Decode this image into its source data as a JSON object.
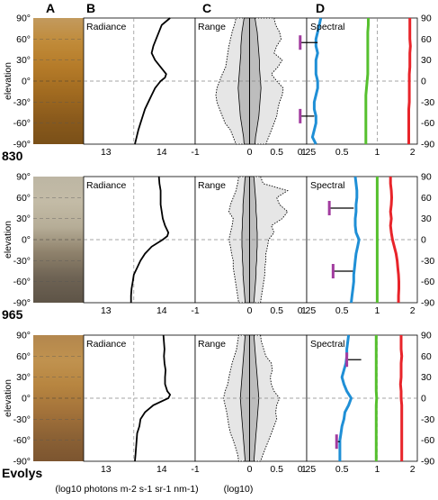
{
  "column_headers": [
    "A",
    "B",
    "C",
    "D"
  ],
  "panel_titles": {
    "radiance": "Radiance",
    "range": "Range",
    "spectral": "Spectral"
  },
  "elevation_label": "elevation",
  "elevation_ticks_left": [
    "90°",
    "60°",
    "30°",
    "0°",
    "-30°",
    "-60°",
    "-90°"
  ],
  "elevation_ticks_right": [
    "90",
    "60",
    "30",
    "0",
    "-30",
    "-60",
    "-90"
  ],
  "radiance_ticks": [
    "13",
    "14"
  ],
  "range_ticks": [
    "-1",
    "0",
    "0.5",
    "1"
  ],
  "spectral_ticks": [
    "0.25",
    "0.5",
    "1",
    "2"
  ],
  "bottom_labels": {
    "radiance": "(log10 photons m-2 s-1 sr-1 nm-1)",
    "range": "(log10)"
  },
  "colors": {
    "blue": "#1f8fd6",
    "green": "#56c02e",
    "red": "#e8242a",
    "magenta": "#a23b9f",
    "fill_outer": "#e6e6e6",
    "fill_inner": "#bdbdbd"
  },
  "chart_data": [
    {
      "type": "line",
      "row_label": "830",
      "photo_gradient": [
        "#c29a5e",
        "#c08a38",
        "#b47a28",
        "#a06a20",
        "#8a5a1c",
        "#7a5018"
      ],
      "radiance": {
        "xlim": [
          12.6,
          14.6
        ],
        "elevation": [
          90,
          80,
          70,
          60,
          50,
          40,
          30,
          20,
          10,
          5,
          0,
          -10,
          -20,
          -30,
          -40,
          -50,
          -60,
          -70,
          -80,
          -90
        ],
        "log_radiance": [
          14.15,
          14.0,
          13.95,
          13.9,
          13.85,
          13.82,
          13.88,
          13.98,
          14.08,
          14.06,
          13.98,
          13.88,
          13.82,
          13.76,
          13.7,
          13.66,
          13.62,
          13.58,
          13.55,
          13.52
        ]
      },
      "range": {
        "xlim": [
          -1,
          1.05
        ],
        "elevation": [
          90,
          80,
          70,
          60,
          50,
          40,
          30,
          20,
          10,
          0,
          -10,
          -20,
          -30,
          -40,
          -50,
          -60,
          -70,
          -80,
          -90
        ],
        "outer_min": [
          -0.25,
          -0.28,
          -0.32,
          -0.35,
          -0.38,
          -0.4,
          -0.42,
          -0.44,
          -0.5,
          -0.55,
          -0.6,
          -0.62,
          -0.6,
          -0.55,
          -0.5,
          -0.45,
          -0.35,
          -0.3,
          -0.25
        ],
        "outer_max": [
          0.45,
          0.48,
          0.55,
          0.58,
          0.5,
          0.45,
          0.6,
          0.52,
          0.4,
          0.5,
          0.62,
          0.6,
          0.55,
          0.52,
          0.5,
          0.45,
          0.4,
          0.35,
          0.3
        ],
        "inner_min": [
          -0.1,
          -0.12,
          -0.14,
          -0.15,
          -0.16,
          -0.16,
          -0.17,
          -0.18,
          -0.19,
          -0.2,
          -0.21,
          -0.2,
          -0.19,
          -0.18,
          -0.17,
          -0.15,
          -0.13,
          -0.11,
          -0.1
        ],
        "inner_max": [
          0.1,
          0.12,
          0.14,
          0.15,
          0.16,
          0.17,
          0.18,
          0.18,
          0.19,
          0.2,
          0.21,
          0.2,
          0.19,
          0.18,
          0.17,
          0.15,
          0.13,
          0.11,
          0.1
        ]
      },
      "spectral": {
        "scale": "log",
        "xlim": [
          0.25,
          2.2
        ],
        "elevation": [
          90,
          80,
          70,
          60,
          50,
          40,
          30,
          20,
          10,
          0,
          -10,
          -20,
          -30,
          -40,
          -50,
          -60,
          -70,
          -80,
          -90
        ],
        "series": [
          {
            "color": "blue",
            "values": [
              0.33,
              0.32,
              0.31,
              0.3,
              0.3,
              0.31,
              0.3,
              0.3,
              0.3,
              0.31,
              0.31,
              0.3,
              0.29,
              0.29,
              0.3,
              0.3,
              0.29,
              0.28,
              0.3
            ]
          },
          {
            "color": "green",
            "values": [
              0.84,
              0.84,
              0.83,
              0.83,
              0.83,
              0.83,
              0.83,
              0.83,
              0.83,
              0.82,
              0.81,
              0.8,
              0.8,
              0.8,
              0.8,
              0.8,
              0.8,
              0.8,
              0.8
            ]
          },
          {
            "color": "red",
            "values": [
              1.9,
              1.9,
              1.9,
              1.9,
              1.92,
              1.9,
              1.9,
              1.9,
              1.88,
              1.88,
              1.88,
              1.88,
              1.88,
              1.86,
              1.86,
              1.86,
              1.86,
              1.86,
              1.86
            ]
          }
        ],
        "markers": [
          {
            "elevation": 55,
            "from": 0.22,
            "to": 0.31
          },
          {
            "elevation": -50,
            "from": 0.22,
            "to": 0.29
          }
        ]
      }
    },
    {
      "type": "line",
      "row_label": "965",
      "photo_gradient": [
        "#bdb6a4",
        "#c3bba6",
        "#b6ad97",
        "#8f826c",
        "#6e6354",
        "#5e5447"
      ],
      "radiance": {
        "xlim": [
          12.6,
          14.6
        ],
        "elevation": [
          90,
          80,
          70,
          60,
          50,
          40,
          30,
          20,
          10,
          5,
          0,
          -10,
          -20,
          -30,
          -40,
          -50,
          -60,
          -70,
          -80,
          -90
        ],
        "log_radiance": [
          13.95,
          13.96,
          13.98,
          13.98,
          13.98,
          14.0,
          14.02,
          14.06,
          14.12,
          14.1,
          14.02,
          13.82,
          13.7,
          13.62,
          13.56,
          13.5,
          13.48,
          13.46,
          13.45,
          13.45
        ]
      },
      "range": {
        "xlim": [
          -1,
          1.05
        ],
        "elevation": [
          90,
          80,
          70,
          60,
          50,
          40,
          30,
          20,
          10,
          0,
          -10,
          -20,
          -30,
          -40,
          -50,
          -60,
          -70,
          -80,
          -90
        ],
        "outer_min": [
          -0.2,
          -0.22,
          -0.25,
          -0.3,
          -0.35,
          -0.38,
          -0.3,
          -0.32,
          -0.35,
          -0.38,
          -0.35,
          -0.33,
          -0.3,
          -0.3,
          -0.28,
          -0.26,
          -0.24,
          -0.22,
          -0.2
        ],
        "outer_max": [
          0.2,
          0.25,
          0.7,
          0.5,
          0.55,
          0.7,
          0.6,
          0.4,
          0.45,
          0.35,
          0.33,
          0.3,
          0.3,
          0.28,
          0.28,
          0.26,
          0.24,
          0.22,
          0.2
        ],
        "inner_min": [
          -0.08,
          -0.09,
          -0.1,
          -0.11,
          -0.12,
          -0.12,
          -0.13,
          -0.13,
          -0.14,
          -0.14,
          -0.14,
          -0.13,
          -0.13,
          -0.12,
          -0.12,
          -0.11,
          -0.1,
          -0.09,
          -0.08
        ],
        "inner_max": [
          0.08,
          0.09,
          0.1,
          0.11,
          0.12,
          0.12,
          0.13,
          0.13,
          0.14,
          0.14,
          0.14,
          0.13,
          0.13,
          0.12,
          0.12,
          0.11,
          0.1,
          0.09,
          0.08
        ]
      },
      "spectral": {
        "scale": "log",
        "xlim": [
          0.25,
          2.2
        ],
        "elevation": [
          90,
          80,
          70,
          60,
          50,
          40,
          30,
          20,
          10,
          0,
          -10,
          -20,
          -30,
          -40,
          -50,
          -60,
          -70,
          -80,
          -90
        ],
        "series": [
          {
            "color": "blue",
            "values": [
              0.65,
              0.66,
              0.67,
              0.67,
              0.66,
              0.66,
              0.65,
              0.65,
              0.66,
              0.7,
              0.68,
              0.66,
              0.65,
              0.64,
              0.63,
              0.63,
              0.62,
              0.61,
              0.6
            ]
          },
          {
            "color": "green",
            "values": [
              1.0,
              1.0,
              1.0,
              1.0,
              1.0,
              1.0,
              1.0,
              1.0,
              1.0,
              1.0,
              1.0,
              1.0,
              1.0,
              1.0,
              1.0,
              1.0,
              1.0,
              1.0,
              1.0
            ]
          },
          {
            "color": "red",
            "values": [
              1.3,
              1.3,
              1.32,
              1.33,
              1.32,
              1.3,
              1.32,
              1.3,
              1.32,
              1.35,
              1.4,
              1.45,
              1.48,
              1.5,
              1.52,
              1.53,
              1.53,
              1.52,
              1.52
            ]
          }
        ],
        "markers": [
          {
            "elevation": 45,
            "from": 0.39,
            "to": 0.63
          },
          {
            "elevation": -45,
            "from": 0.42,
            "to": 0.62
          }
        ]
      }
    },
    {
      "type": "line",
      "row_label": "Evolys",
      "photo_gradient": [
        "#b3874e",
        "#c0924f",
        "#b78540",
        "#a4733a",
        "#8c6235",
        "#7c5530"
      ],
      "radiance": {
        "xlim": [
          12.6,
          14.6
        ],
        "elevation": [
          90,
          80,
          70,
          60,
          50,
          40,
          30,
          20,
          10,
          5,
          0,
          -10,
          -20,
          -30,
          -40,
          -50,
          -60,
          -70,
          -80,
          -90
        ],
        "log_radiance": [
          14.03,
          14.04,
          14.05,
          14.04,
          14.05,
          14.07,
          14.06,
          14.06,
          14.1,
          14.15,
          14.12,
          13.85,
          13.7,
          13.62,
          13.6,
          13.56,
          13.55,
          13.54,
          13.53,
          13.52
        ]
      },
      "range": {
        "xlim": [
          -1,
          1.05
        ],
        "elevation": [
          90,
          80,
          70,
          60,
          50,
          40,
          30,
          20,
          10,
          0,
          -10,
          -20,
          -30,
          -40,
          -50,
          -60,
          -70,
          -80,
          -90
        ],
        "outer_min": [
          -0.2,
          -0.22,
          -0.24,
          -0.28,
          -0.32,
          -0.35,
          -0.38,
          -0.4,
          -0.45,
          -0.48,
          -0.45,
          -0.42,
          -0.4,
          -0.38,
          -0.35,
          -0.3,
          -0.26,
          -0.22,
          -0.2
        ],
        "outer_max": [
          0.2,
          0.22,
          0.26,
          0.3,
          0.4,
          0.42,
          0.38,
          0.4,
          0.45,
          0.55,
          0.5,
          0.48,
          0.5,
          0.45,
          0.4,
          0.35,
          0.3,
          0.25,
          0.2
        ],
        "inner_min": [
          -0.08,
          -0.09,
          -0.1,
          -0.11,
          -0.12,
          -0.13,
          -0.14,
          -0.15,
          -0.16,
          -0.17,
          -0.16,
          -0.15,
          -0.14,
          -0.13,
          -0.12,
          -0.11,
          -0.1,
          -0.09,
          -0.08
        ],
        "inner_max": [
          0.08,
          0.09,
          0.1,
          0.11,
          0.12,
          0.13,
          0.14,
          0.15,
          0.16,
          0.17,
          0.16,
          0.15,
          0.14,
          0.13,
          0.12,
          0.11,
          0.1,
          0.09,
          0.08
        ]
      },
      "spectral": {
        "scale": "log",
        "xlim": [
          0.25,
          2.2
        ],
        "elevation": [
          90,
          80,
          70,
          60,
          50,
          40,
          30,
          20,
          10,
          0,
          -10,
          -20,
          -30,
          -40,
          -50,
          -60,
          -70,
          -80,
          -90
        ],
        "series": [
          {
            "color": "blue",
            "values": [
              0.57,
              0.56,
              0.55,
              0.55,
              0.54,
              0.52,
              0.5,
              0.52,
              0.55,
              0.6,
              0.57,
              0.53,
              0.52,
              0.5,
              0.49,
              0.48,
              0.48,
              0.48,
              0.48
            ]
          },
          {
            "color": "green",
            "values": [
              0.98,
              0.98,
              0.98,
              0.98,
              0.98,
              0.98,
              0.98,
              0.98,
              0.98,
              0.99,
              0.98,
              0.98,
              0.98,
              0.98,
              0.98,
              0.98,
              0.98,
              0.98,
              0.98
            ]
          },
          {
            "color": "red",
            "values": [
              1.6,
              1.6,
              1.6,
              1.62,
              1.6,
              1.6,
              1.6,
              1.58,
              1.6,
              1.6,
              1.62,
              1.62,
              1.62,
              1.62,
              1.62,
              1.62,
              1.62,
              1.62,
              1.62
            ]
          }
        ],
        "markers": [
          {
            "elevation": 55,
            "from": 0.55,
            "to": 0.73
          },
          {
            "elevation": -62,
            "from": 0.45,
            "to": 0.48
          }
        ]
      }
    }
  ]
}
